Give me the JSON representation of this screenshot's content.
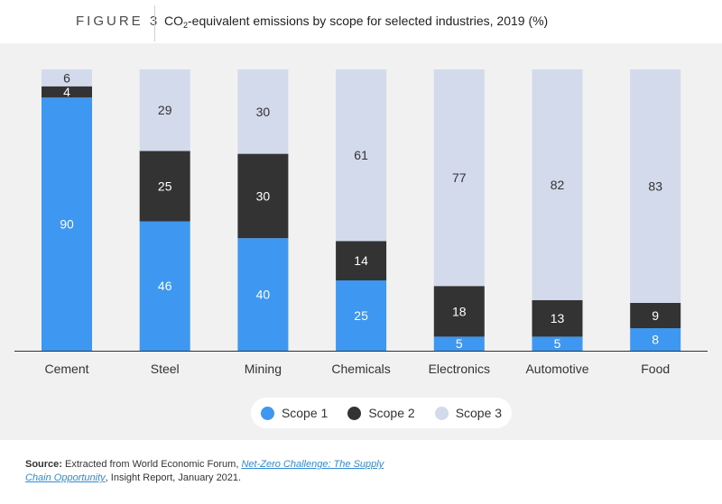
{
  "figure_label": "FIGURE 3",
  "title": {
    "prefix": "CO",
    "subscript": "2",
    "suffix": "-equivalent emissions by scope for selected industries, 2019 (%)"
  },
  "colors": {
    "scope1": "#3e97f0",
    "scope2": "#333333",
    "scope3": "#d3daec",
    "panel": "#f1f1f1"
  },
  "legend": [
    {
      "label": "Scope 1",
      "color": "#3e97f0"
    },
    {
      "label": "Scope 2",
      "color": "#333333"
    },
    {
      "label": "Scope 3",
      "color": "#d3daec"
    }
  ],
  "source": {
    "label": "Source:",
    "text_before": "Extracted from World Economic Forum,",
    "link_text": "Net-Zero Challenge: The Supply Chain Opportunity",
    "text_after": ", Insight Report, January 2021."
  },
  "chart_data": {
    "type": "bar",
    "stacked": true,
    "title": "CO2-equivalent emissions by scope for selected industries, 2019 (%)",
    "categories": [
      "Cement",
      "Steel",
      "Mining",
      "Chemicals",
      "Electronics",
      "Automotive",
      "Food"
    ],
    "series": [
      {
        "name": "Scope 1",
        "values": [
          90,
          46,
          40,
          25,
          5,
          5,
          8
        ]
      },
      {
        "name": "Scope 2",
        "values": [
          4,
          25,
          30,
          14,
          18,
          13,
          9
        ]
      },
      {
        "name": "Scope 3",
        "values": [
          6,
          29,
          30,
          61,
          77,
          82,
          83
        ]
      }
    ],
    "ylim": [
      0,
      100
    ],
    "grid": false,
    "legend_position": "bottom"
  }
}
